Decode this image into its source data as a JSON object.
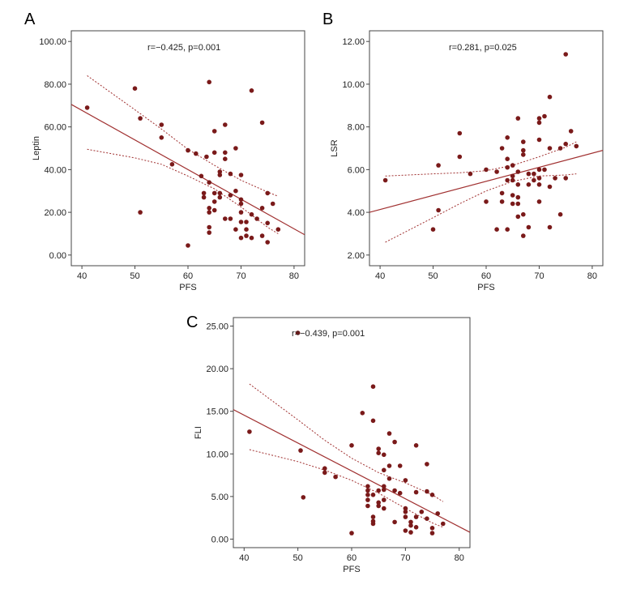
{
  "colors": {
    "point": "#7a1a1a",
    "fit_line": "#a03030",
    "ci_line": "#a03030",
    "frame": "#444444"
  },
  "chart_data": [
    {
      "panel": "A",
      "type": "scatter",
      "xlabel": "PFS",
      "ylabel": "Leptin",
      "annotation": "r=−0.425, p=0.001",
      "xlim": [
        38,
        82
      ],
      "ylim": [
        -5,
        105
      ],
      "x_ticks": [
        40,
        50,
        60,
        70,
        80
      ],
      "y_ticks": [
        "0.00",
        "20.00",
        "40.00",
        "60.00",
        "80.00",
        "100.00"
      ],
      "fit_line": {
        "x": [
          38,
          82
        ],
        "y": [
          70.5,
          9.5
        ]
      },
      "ci_upper": {
        "x": [
          41,
          50,
          55,
          60,
          65,
          70,
          75,
          77
        ],
        "y": [
          84,
          68,
          59,
          49.5,
          42,
          35,
          29.5,
          27.5
        ]
      },
      "ci_lower": {
        "x": [
          41,
          50,
          55,
          60,
          65,
          70,
          75,
          77
        ],
        "y": [
          49.5,
          45.5,
          42.5,
          37,
          31,
          22.5,
          13,
          10
        ]
      },
      "points": [
        {
          "x": 41,
          "y": 69
        },
        {
          "x": 50,
          "y": 78
        },
        {
          "x": 51,
          "y": 64
        },
        {
          "x": 51,
          "y": 20
        },
        {
          "x": 55,
          "y": 61
        },
        {
          "x": 55,
          "y": 55
        },
        {
          "x": 57,
          "y": 42.5
        },
        {
          "x": 60,
          "y": 49
        },
        {
          "x": 60,
          "y": 4.5
        },
        {
          "x": 61.5,
          "y": 47.5
        },
        {
          "x": 62.5,
          "y": 37
        },
        {
          "x": 63,
          "y": 29
        },
        {
          "x": 63,
          "y": 27
        },
        {
          "x": 63.5,
          "y": 46
        },
        {
          "x": 64,
          "y": 81
        },
        {
          "x": 64,
          "y": 34
        },
        {
          "x": 64,
          "y": 22
        },
        {
          "x": 64,
          "y": 20
        },
        {
          "x": 64,
          "y": 13
        },
        {
          "x": 64,
          "y": 10.5
        },
        {
          "x": 65,
          "y": 58
        },
        {
          "x": 65,
          "y": 48
        },
        {
          "x": 65,
          "y": 29
        },
        {
          "x": 65,
          "y": 25
        },
        {
          "x": 65,
          "y": 21
        },
        {
          "x": 66,
          "y": 39
        },
        {
          "x": 66,
          "y": 37.5
        },
        {
          "x": 66,
          "y": 29
        },
        {
          "x": 66,
          "y": 27
        },
        {
          "x": 67,
          "y": 61
        },
        {
          "x": 67,
          "y": 48
        },
        {
          "x": 67,
          "y": 17
        },
        {
          "x": 67,
          "y": 45
        },
        {
          "x": 68,
          "y": 38
        },
        {
          "x": 68,
          "y": 28
        },
        {
          "x": 68,
          "y": 17
        },
        {
          "x": 69,
          "y": 50
        },
        {
          "x": 69,
          "y": 30
        },
        {
          "x": 69,
          "y": 12
        },
        {
          "x": 70,
          "y": 37.5
        },
        {
          "x": 70,
          "y": 26
        },
        {
          "x": 70,
          "y": 24
        },
        {
          "x": 70,
          "y": 20
        },
        {
          "x": 70,
          "y": 15.5
        },
        {
          "x": 70,
          "y": 8
        },
        {
          "x": 71,
          "y": 15.5
        },
        {
          "x": 71,
          "y": 12
        },
        {
          "x": 71,
          "y": 9
        },
        {
          "x": 72,
          "y": 77
        },
        {
          "x": 72,
          "y": 19
        },
        {
          "x": 72,
          "y": 8
        },
        {
          "x": 73,
          "y": 17
        },
        {
          "x": 74,
          "y": 62
        },
        {
          "x": 74,
          "y": 22
        },
        {
          "x": 74,
          "y": 9
        },
        {
          "x": 75,
          "y": 29
        },
        {
          "x": 75,
          "y": 15
        },
        {
          "x": 75,
          "y": 6
        },
        {
          "x": 76,
          "y": 24
        },
        {
          "x": 77,
          "y": 12
        }
      ]
    },
    {
      "panel": "B",
      "type": "scatter",
      "xlabel": "PFS",
      "ylabel": "LSR",
      "annotation": "r=0.281, p=0.025",
      "xlim": [
        38,
        82
      ],
      "ylim": [
        1.5,
        12.5
      ],
      "x_ticks": [
        40,
        50,
        60,
        70,
        80
      ],
      "y_ticks": [
        "2.00",
        "4.00",
        "6.00",
        "8.00",
        "10.00",
        "12.00"
      ],
      "fit_line": {
        "x": [
          38,
          82
        ],
        "y": [
          4.0,
          6.9
        ]
      },
      "ci_upper": {
        "x": [
          41,
          50,
          55,
          60,
          65,
          70,
          75,
          77
        ],
        "y": [
          5.7,
          5.8,
          5.85,
          5.95,
          6.2,
          6.6,
          7.05,
          7.3
        ]
      },
      "ci_lower": {
        "x": [
          41,
          50,
          55,
          60,
          65,
          70,
          75,
          77
        ],
        "y": [
          2.6,
          3.75,
          4.4,
          5.0,
          5.45,
          5.7,
          5.75,
          5.8
        ]
      },
      "points": [
        {
          "x": 41,
          "y": 5.5
        },
        {
          "x": 50,
          "y": 3.2
        },
        {
          "x": 51,
          "y": 6.2
        },
        {
          "x": 51,
          "y": 4.1
        },
        {
          "x": 55,
          "y": 7.7
        },
        {
          "x": 55,
          "y": 6.6
        },
        {
          "x": 57,
          "y": 5.8
        },
        {
          "x": 60,
          "y": 6.0
        },
        {
          "x": 60,
          "y": 4.5
        },
        {
          "x": 62,
          "y": 3.2
        },
        {
          "x": 62,
          "y": 5.9
        },
        {
          "x": 63,
          "y": 7.0
        },
        {
          "x": 63,
          "y": 4.5
        },
        {
          "x": 63,
          "y": 4.9
        },
        {
          "x": 64,
          "y": 6.1
        },
        {
          "x": 64,
          "y": 5.5
        },
        {
          "x": 64,
          "y": 7.5
        },
        {
          "x": 64,
          "y": 3.2
        },
        {
          "x": 64,
          "y": 6.5
        },
        {
          "x": 65,
          "y": 5.7
        },
        {
          "x": 65,
          "y": 5.5
        },
        {
          "x": 65,
          "y": 4.8
        },
        {
          "x": 65,
          "y": 4.4
        },
        {
          "x": 65,
          "y": 6.2
        },
        {
          "x": 66,
          "y": 8.4
        },
        {
          "x": 66,
          "y": 5.3
        },
        {
          "x": 66,
          "y": 4.7
        },
        {
          "x": 66,
          "y": 4.4
        },
        {
          "x": 66,
          "y": 3.8
        },
        {
          "x": 66,
          "y": 5.9
        },
        {
          "x": 67,
          "y": 7.3
        },
        {
          "x": 67,
          "y": 6.7
        },
        {
          "x": 67,
          "y": 6.9
        },
        {
          "x": 67,
          "y": 2.9
        },
        {
          "x": 67,
          "y": 3.9
        },
        {
          "x": 68,
          "y": 5.8
        },
        {
          "x": 68,
          "y": 5.3
        },
        {
          "x": 68,
          "y": 3.3
        },
        {
          "x": 69,
          "y": 5.8
        },
        {
          "x": 69,
          "y": 5.5
        },
        {
          "x": 70,
          "y": 8.4
        },
        {
          "x": 70,
          "y": 8.2
        },
        {
          "x": 70,
          "y": 7.4
        },
        {
          "x": 70,
          "y": 6.0
        },
        {
          "x": 70,
          "y": 5.6
        },
        {
          "x": 70,
          "y": 5.3
        },
        {
          "x": 70,
          "y": 4.5
        },
        {
          "x": 71,
          "y": 8.5
        },
        {
          "x": 71,
          "y": 6.0
        },
        {
          "x": 72,
          "y": 9.4
        },
        {
          "x": 72,
          "y": 7.0
        },
        {
          "x": 72,
          "y": 5.2
        },
        {
          "x": 72,
          "y": 3.3
        },
        {
          "x": 73,
          "y": 5.6
        },
        {
          "x": 74,
          "y": 7.0
        },
        {
          "x": 74,
          "y": 3.9
        },
        {
          "x": 75,
          "y": 11.4
        },
        {
          "x": 75,
          "y": 7.2
        },
        {
          "x": 75,
          "y": 5.6
        },
        {
          "x": 76,
          "y": 7.8
        },
        {
          "x": 77,
          "y": 7.1
        }
      ]
    },
    {
      "panel": "C",
      "type": "scatter",
      "xlabel": "PFS",
      "ylabel": "FLI",
      "annotation": "r=−0.439, p=0.001",
      "xlim": [
        38,
        82
      ],
      "ylim": [
        -1,
        26
      ],
      "x_ticks": [
        40,
        50,
        60,
        70,
        80
      ],
      "y_ticks": [
        "0.00",
        "5.00",
        "10.00",
        "15.00",
        "20.00",
        "25.00"
      ],
      "fit_line": {
        "x": [
          38,
          82
        ],
        "y": [
          15.2,
          0.8
        ]
      },
      "ci_upper": {
        "x": [
          41,
          50,
          55,
          60,
          65,
          70,
          75,
          77
        ],
        "y": [
          18.2,
          14.0,
          11.6,
          9.5,
          7.8,
          6.6,
          5.2,
          4.4
        ]
      },
      "ci_lower": {
        "x": [
          41,
          50,
          55,
          60,
          65,
          70,
          75,
          77
        ],
        "y": [
          10.5,
          9.1,
          8.1,
          6.9,
          5.4,
          3.6,
          1.9,
          1.4
        ]
      },
      "points": [
        {
          "x": 41,
          "y": 12.6
        },
        {
          "x": 50,
          "y": 24.2
        },
        {
          "x": 50.5,
          "y": 10.4
        },
        {
          "x": 51,
          "y": 4.9
        },
        {
          "x": 55,
          "y": 8.3
        },
        {
          "x": 55,
          "y": 7.8
        },
        {
          "x": 57,
          "y": 7.3
        },
        {
          "x": 60,
          "y": 11.0
        },
        {
          "x": 60,
          "y": 0.7
        },
        {
          "x": 62,
          "y": 14.8
        },
        {
          "x": 63,
          "y": 6.2
        },
        {
          "x": 63,
          "y": 5.7
        },
        {
          "x": 63,
          "y": 5.2
        },
        {
          "x": 63,
          "y": 4.6
        },
        {
          "x": 63,
          "y": 3.9
        },
        {
          "x": 64,
          "y": 17.9
        },
        {
          "x": 64,
          "y": 13.9
        },
        {
          "x": 64,
          "y": 5.2
        },
        {
          "x": 64,
          "y": 2.6
        },
        {
          "x": 64,
          "y": 2.1
        },
        {
          "x": 64,
          "y": 1.8
        },
        {
          "x": 65,
          "y": 10.6
        },
        {
          "x": 65,
          "y": 10.1
        },
        {
          "x": 65,
          "y": 5.7
        },
        {
          "x": 65,
          "y": 4.3
        },
        {
          "x": 65,
          "y": 3.9
        },
        {
          "x": 66,
          "y": 9.9
        },
        {
          "x": 66,
          "y": 8.1
        },
        {
          "x": 66,
          "y": 6.2
        },
        {
          "x": 66,
          "y": 5.8
        },
        {
          "x": 66,
          "y": 4.6
        },
        {
          "x": 66,
          "y": 3.6
        },
        {
          "x": 67,
          "y": 12.4
        },
        {
          "x": 67,
          "y": 8.6
        },
        {
          "x": 67,
          "y": 7.1
        },
        {
          "x": 68,
          "y": 11.4
        },
        {
          "x": 68,
          "y": 5.7
        },
        {
          "x": 68,
          "y": 2.0
        },
        {
          "x": 69,
          "y": 8.6
        },
        {
          "x": 69,
          "y": 5.4
        },
        {
          "x": 70,
          "y": 6.9
        },
        {
          "x": 70,
          "y": 3.6
        },
        {
          "x": 70,
          "y": 3.2
        },
        {
          "x": 70,
          "y": 2.6
        },
        {
          "x": 70,
          "y": 1.0
        },
        {
          "x": 71,
          "y": 2.0
        },
        {
          "x": 71,
          "y": 1.6
        },
        {
          "x": 71,
          "y": 0.8
        },
        {
          "x": 72,
          "y": 11.0
        },
        {
          "x": 72,
          "y": 5.5
        },
        {
          "x": 72,
          "y": 2.6
        },
        {
          "x": 72,
          "y": 1.4
        },
        {
          "x": 73,
          "y": 3.2
        },
        {
          "x": 74,
          "y": 8.8
        },
        {
          "x": 74,
          "y": 5.6
        },
        {
          "x": 74,
          "y": 2.4
        },
        {
          "x": 75,
          "y": 5.2
        },
        {
          "x": 75,
          "y": 1.3
        },
        {
          "x": 75,
          "y": 0.7
        },
        {
          "x": 76,
          "y": 3.0
        },
        {
          "x": 77,
          "y": 1.8
        }
      ]
    }
  ]
}
